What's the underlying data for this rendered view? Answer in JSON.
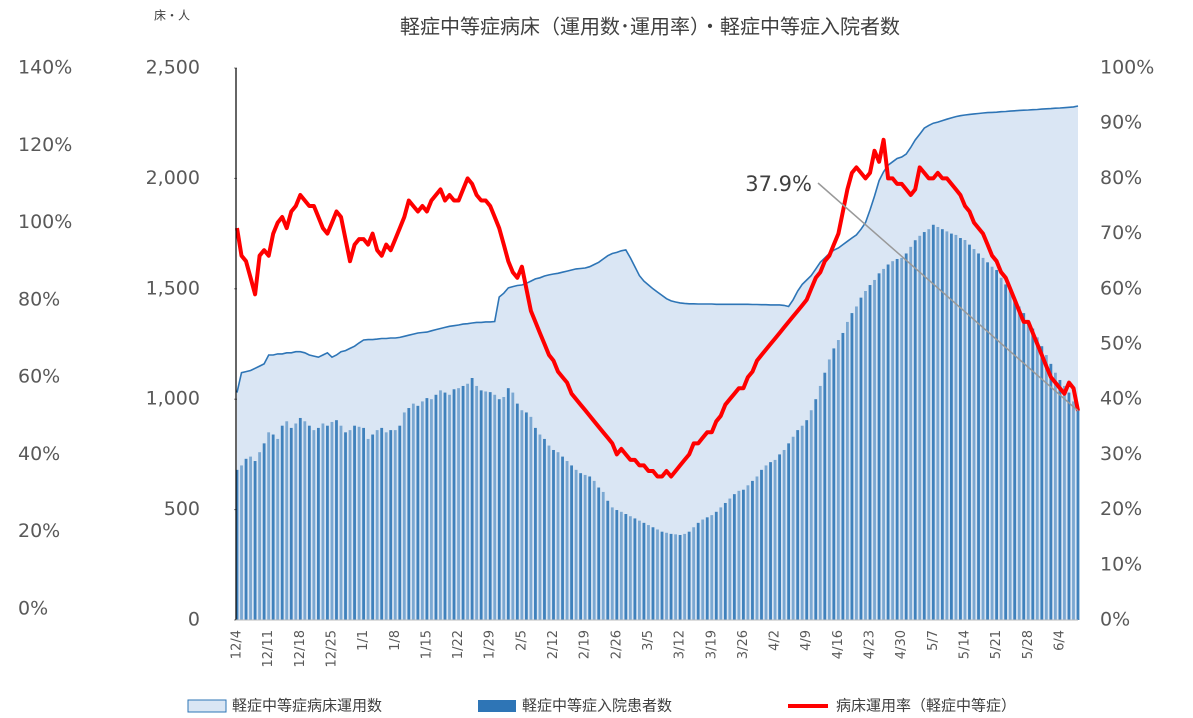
{
  "chart_data": {
    "type": "combo",
    "title": "軽症中等症病床（運用数･運用率）・軽症中等症入院者数",
    "y_label": "床・人",
    "annotation": "37.9%",
    "categories": [
      "12/4",
      null,
      null,
      null,
      null,
      null,
      null,
      "12/11",
      null,
      null,
      null,
      null,
      null,
      null,
      "12/18",
      null,
      null,
      null,
      null,
      null,
      null,
      "12/25",
      null,
      null,
      null,
      null,
      null,
      null,
      "1/1",
      null,
      null,
      null,
      null,
      null,
      null,
      "1/8",
      null,
      null,
      null,
      null,
      null,
      null,
      "1/15",
      null,
      null,
      null,
      null,
      null,
      null,
      "1/22",
      null,
      null,
      null,
      null,
      null,
      null,
      "1/29",
      null,
      null,
      null,
      null,
      null,
      null,
      "2/5",
      null,
      null,
      null,
      null,
      null,
      null,
      "2/12",
      null,
      null,
      null,
      null,
      null,
      null,
      "2/19",
      null,
      null,
      null,
      null,
      null,
      null,
      "2/26",
      null,
      null,
      null,
      null,
      null,
      null,
      "3/5",
      null,
      null,
      null,
      null,
      null,
      null,
      "3/12",
      null,
      null,
      null,
      null,
      null,
      null,
      "3/19",
      null,
      null,
      null,
      null,
      null,
      null,
      "3/26",
      null,
      null,
      null,
      null,
      null,
      null,
      "4/2",
      null,
      null,
      null,
      null,
      null,
      null,
      "4/9",
      null,
      null,
      null,
      null,
      null,
      null,
      "4/16",
      null,
      null,
      null,
      null,
      null,
      null,
      "4/23",
      null,
      null,
      null,
      null,
      null,
      null,
      "4/30",
      null,
      null,
      null,
      null,
      null,
      null,
      "5/7",
      null,
      null,
      null,
      null,
      null,
      null,
      "5/14",
      null,
      null,
      null,
      null,
      null,
      null,
      "5/21",
      null,
      null,
      null,
      null,
      null,
      null,
      "5/28",
      null,
      null,
      null,
      null,
      null,
      null,
      "6/4",
      null,
      null,
      null,
      null
    ],
    "series": [
      {
        "name": "軽症中等症病床運用数",
        "type": "area",
        "color": "#2e75b6",
        "fill": "#dae6f4",
        "values": [
          1030,
          1120,
          1125,
          1130,
          1140,
          1150,
          1160,
          1200,
          1200,
          1205,
          1205,
          1210,
          1210,
          1215,
          1215,
          1210,
          1200,
          1195,
          1190,
          1200,
          1210,
          1190,
          1200,
          1215,
          1220,
          1230,
          1240,
          1255,
          1268,
          1270,
          1270,
          1272,
          1275,
          1275,
          1277,
          1277,
          1280,
          1285,
          1290,
          1295,
          1300,
          1302,
          1304,
          1310,
          1315,
          1320,
          1325,
          1330,
          1333,
          1336,
          1340,
          1342,
          1345,
          1348,
          1348,
          1350,
          1350,
          1352,
          1463,
          1480,
          1504,
          1510,
          1515,
          1517,
          1525,
          1535,
          1545,
          1550,
          1558,
          1563,
          1567,
          1570,
          1575,
          1580,
          1585,
          1590,
          1592,
          1594,
          1600,
          1610,
          1620,
          1635,
          1650,
          1660,
          1665,
          1672,
          1676,
          1640,
          1600,
          1560,
          1535,
          1517,
          1500,
          1485,
          1470,
          1455,
          1445,
          1440,
          1436,
          1434,
          1432,
          1432,
          1431,
          1431,
          1431,
          1431,
          1430,
          1430,
          1430,
          1430,
          1430,
          1430,
          1430,
          1430,
          1429,
          1429,
          1428,
          1428,
          1427,
          1427,
          1427,
          1425,
          1420,
          1450,
          1490,
          1520,
          1540,
          1560,
          1590,
          1620,
          1640,
          1660,
          1675,
          1685,
          1700,
          1715,
          1730,
          1744,
          1770,
          1800,
          1857,
          1920,
          1990,
          2030,
          2060,
          2075,
          2090,
          2097,
          2110,
          2140,
          2174,
          2200,
          2228,
          2240,
          2250,
          2255,
          2262,
          2268,
          2274,
          2280,
          2284,
          2287,
          2290,
          2292,
          2294,
          2296,
          2298,
          2299,
          2300,
          2302,
          2303,
          2305,
          2306,
          2308,
          2309,
          2310,
          2311,
          2312,
          2314,
          2315,
          2316,
          2318,
          2319,
          2320,
          2322,
          2324,
          2328
        ]
      },
      {
        "name": "軽症中等症入院患者数",
        "type": "bar",
        "color": "#2e75b6",
        "values": [
          680,
          700,
          730,
          740,
          720,
          760,
          800,
          850,
          840,
          820,
          880,
          900,
          870,
          890,
          915,
          900,
          880,
          860,
          870,
          890,
          880,
          897,
          905,
          880,
          850,
          860,
          880,
          875,
          870,
          820,
          840,
          860,
          870,
          850,
          860,
          860,
          880,
          940,
          960,
          980,
          970,
          990,
          1005,
          1000,
          1020,
          1040,
          1030,
          1020,
          1045,
          1050,
          1060,
          1070,
          1096,
          1060,
          1040,
          1035,
          1032,
          1020,
          1000,
          1010,
          1050,
          1030,
          980,
          950,
          940,
          920,
          870,
          840,
          820,
          790,
          770,
          760,
          740,
          720,
          700,
          680,
          665,
          657,
          650,
          630,
          600,
          580,
          540,
          510,
          498,
          490,
          480,
          470,
          460,
          450,
          440,
          430,
          420,
          410,
          400,
          395,
          390,
          388,
          385,
          390,
          400,
          420,
          440,
          455,
          465,
          475,
          490,
          510,
          530,
          550,
          570,
          585,
          590,
          610,
          630,
          650,
          680,
          700,
          715,
          725,
          750,
          770,
          800,
          830,
          860,
          880,
          905,
          950,
          1000,
          1060,
          1120,
          1180,
          1230,
          1268,
          1300,
          1350,
          1390,
          1420,
          1460,
          1490,
          1517,
          1540,
          1570,
          1590,
          1610,
          1625,
          1635,
          1640,
          1660,
          1690,
          1720,
          1740,
          1757,
          1770,
          1790,
          1780,
          1770,
          1760,
          1750,
          1744,
          1730,
          1721,
          1700,
          1680,
          1660,
          1640,
          1620,
          1600,
          1585,
          1550,
          1520,
          1490,
          1450,
          1420,
          1390,
          1359,
          1320,
          1280,
          1240,
          1200,
          1160,
          1120,
          1087,
          1060,
          1030,
          990,
          951
        ]
      },
      {
        "name": "病床運用率（軽症中等症）",
        "type": "line",
        "axis": "y2",
        "color": "#ff0000",
        "values": [
          71,
          66,
          65,
          62,
          59,
          66,
          67,
          66,
          70,
          72,
          73,
          71,
          74,
          75,
          77,
          76,
          75,
          75,
          73,
          71,
          70,
          72,
          74,
          73,
          69,
          65,
          68,
          69,
          69,
          68,
          70,
          67,
          66,
          68,
          67,
          69,
          71,
          73,
          76,
          75,
          74,
          75,
          74,
          76,
          77,
          78,
          76,
          77,
          76,
          76,
          78,
          80,
          79,
          77,
          76,
          76,
          75,
          73,
          71,
          68,
          65,
          63,
          62,
          64,
          60,
          56,
          54,
          52,
          50,
          48,
          47,
          45,
          44,
          43,
          41,
          40,
          39,
          38,
          37,
          36,
          35,
          34,
          33,
          32,
          30,
          31,
          30,
          29,
          29,
          28,
          28,
          27,
          27,
          26,
          26,
          27,
          26,
          27,
          28,
          29,
          30,
          32,
          32,
          33,
          34,
          34,
          36,
          37,
          39,
          40,
          41,
          42,
          42,
          44,
          45,
          47,
          48,
          49,
          50,
          51,
          52,
          53,
          54,
          55,
          56,
          57,
          58,
          60,
          62,
          63,
          65,
          66,
          68,
          70,
          74,
          78,
          81,
          82,
          81,
          80,
          81,
          85,
          83,
          87,
          80,
          80,
          79,
          79,
          78,
          77,
          78,
          82,
          81,
          80,
          80,
          81,
          80,
          80,
          79,
          78,
          77,
          75,
          74,
          72,
          71,
          70,
          68,
          66,
          65,
          63,
          62,
          60,
          58,
          56,
          54,
          54,
          52,
          50,
          48,
          46,
          44,
          43,
          42,
          41,
          43,
          42,
          37.9
        ]
      }
    ],
    "ylim": [
      0,
      2500
    ],
    "yticks": [
      0,
      500,
      {
        "value": 1000,
        "label": "1,000"
      },
      {
        "value": 1500,
        "label": "1,500"
      },
      {
        "value": 2000,
        "label": "2,000"
      },
      {
        "value": 2500,
        "label": "2,500"
      }
    ],
    "y2lim": [
      0,
      100
    ],
    "y2ticks": [
      {
        "value": 0,
        "label": "0%"
      },
      {
        "value": 10,
        "label": "10%"
      },
      {
        "value": 20,
        "label": "20%"
      },
      {
        "value": 30,
        "label": "30%"
      },
      {
        "value": 40,
        "label": "40%"
      },
      {
        "value": 50,
        "label": "50%"
      },
      {
        "value": 60,
        "label": "60%"
      },
      {
        "value": 70,
        "label": "70%"
      },
      {
        "value": 80,
        "label": "80%"
      },
      {
        "value": 90,
        "label": "90%"
      },
      {
        "value": 100,
        "label": "100%"
      }
    ],
    "y3lim": [
      0,
      140
    ],
    "y3ticks": [
      {
        "value": 0,
        "label": "0%"
      },
      {
        "value": 20,
        "label": "20%"
      },
      {
        "value": 40,
        "label": "40%"
      },
      {
        "value": 60,
        "label": "60%"
      },
      {
        "value": 80,
        "label": "80%"
      },
      {
        "value": 100,
        "label": "100%"
      },
      {
        "value": 120,
        "label": "120%"
      },
      {
        "value": 140,
        "label": "140%"
      }
    ]
  }
}
